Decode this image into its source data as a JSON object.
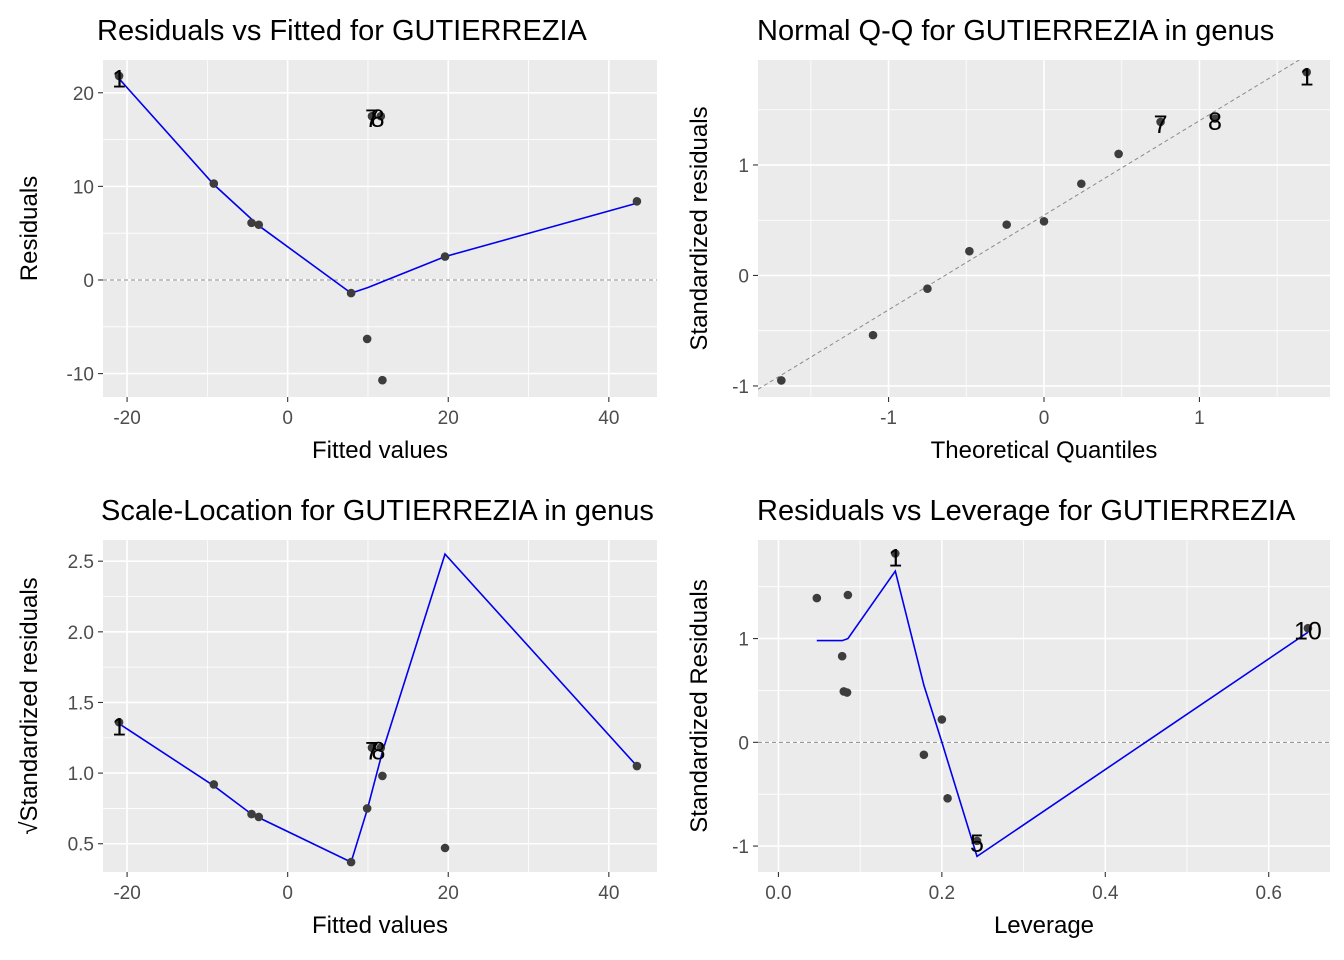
{
  "chart_data": [
    {
      "type": "scatter",
      "title": "Residuals vs Fitted for GUTIERREZIA",
      "xlabel": "Fitted values",
      "ylabel": "Residuals",
      "xlim": [
        -23,
        46
      ],
      "ylim": [
        -12.5,
        23.5
      ],
      "xticks": [
        -20,
        0,
        20,
        40
      ],
      "yticks": [
        -10,
        0,
        10,
        20
      ],
      "hline": 0,
      "points": [
        {
          "x": -21,
          "y": 21.8
        },
        {
          "x": -9.2,
          "y": 10.3
        },
        {
          "x": -4.5,
          "y": 6.1
        },
        {
          "x": -3.6,
          "y": 5.9
        },
        {
          "x": 7.9,
          "y": -1.4
        },
        {
          "x": 9.9,
          "y": -6.3
        },
        {
          "x": 10.5,
          "y": 17.5
        },
        {
          "x": 11.6,
          "y": 17.5
        },
        {
          "x": 11.8,
          "y": -10.7
        },
        {
          "x": 19.6,
          "y": 2.5
        },
        {
          "x": 43.5,
          "y": 8.4
        }
      ],
      "smooth": [
        {
          "x": -21,
          "y": 21.5
        },
        {
          "x": -9.2,
          "y": 10.2
        },
        {
          "x": -4.5,
          "y": 6.5
        },
        {
          "x": -3.6,
          "y": 5.8
        },
        {
          "x": 7.9,
          "y": -1.4
        },
        {
          "x": 10,
          "y": -0.8
        },
        {
          "x": 19.6,
          "y": 2.5
        },
        {
          "x": 43.5,
          "y": 8.2
        }
      ],
      "labels": [
        {
          "text": "1",
          "x": -21,
          "y": 21.5
        },
        {
          "text": "7",
          "x": 10.5,
          "y": 17.3
        },
        {
          "text": "8",
          "x": 11.2,
          "y": 17.3
        }
      ]
    },
    {
      "type": "scatter",
      "title": "Normal Q-Q for GUTIERREZIA in genus",
      "xlabel": "Theoretical Quantiles",
      "ylabel": "Standardized residuals",
      "xlim": [
        -1.84,
        1.84
      ],
      "ylim": [
        -1.1,
        1.95
      ],
      "xticks": [
        -1,
        0,
        1
      ],
      "yticks": [
        -1,
        0,
        1
      ],
      "refline": [
        {
          "x": -1.84,
          "y": -1.03
        },
        {
          "x": 1.84,
          "y": 2.12
        }
      ],
      "points": [
        {
          "x": -1.69,
          "y": -0.95
        },
        {
          "x": -1.1,
          "y": -0.54
        },
        {
          "x": -0.75,
          "y": -0.12
        },
        {
          "x": -0.48,
          "y": 0.22
        },
        {
          "x": -0.24,
          "y": 0.46
        },
        {
          "x": 0.0,
          "y": 0.49
        },
        {
          "x": 0.24,
          "y": 0.83
        },
        {
          "x": 0.48,
          "y": 1.1
        },
        {
          "x": 0.75,
          "y": 1.39
        },
        {
          "x": 1.1,
          "y": 1.42
        },
        {
          "x": 1.69,
          "y": 1.84
        }
      ],
      "labels": [
        {
          "text": "7",
          "x": 0.75,
          "y": 1.37
        },
        {
          "text": "8",
          "x": 1.1,
          "y": 1.4
        },
        {
          "text": "1",
          "x": 1.69,
          "y": 1.8
        }
      ]
    },
    {
      "type": "scatter",
      "title": "Scale-Location for GUTIERREZIA in genus",
      "xlabel": "Fitted values",
      "ylabel": "√Standardized residuals",
      "xlim": [
        -23,
        46
      ],
      "ylim": [
        0.3,
        2.65
      ],
      "xticks": [
        -20,
        0,
        20,
        40
      ],
      "yticks": [
        0.5,
        1.0,
        1.5,
        2.0,
        2.5
      ],
      "ytick_labels": [
        "0.5",
        "1.0",
        "1.5",
        "2.0",
        "2.5"
      ],
      "points": [
        {
          "x": -21,
          "y": 1.36
        },
        {
          "x": -9.2,
          "y": 0.92
        },
        {
          "x": -4.5,
          "y": 0.71
        },
        {
          "x": -3.6,
          "y": 0.69
        },
        {
          "x": 7.9,
          "y": 0.37
        },
        {
          "x": 9.9,
          "y": 0.75
        },
        {
          "x": 10.5,
          "y": 1.18
        },
        {
          "x": 11.6,
          "y": 1.18
        },
        {
          "x": 11.8,
          "y": 0.98
        },
        {
          "x": 19.6,
          "y": 0.47
        },
        {
          "x": 43.5,
          "y": 1.05
        }
      ],
      "smooth": [
        {
          "x": -21,
          "y": 1.35
        },
        {
          "x": -9.2,
          "y": 0.91
        },
        {
          "x": -4.5,
          "y": 0.71
        },
        {
          "x": 7.9,
          "y": 0.37
        },
        {
          "x": 9.9,
          "y": 0.74
        },
        {
          "x": 11.8,
          "y": 1.15
        },
        {
          "x": 19.6,
          "y": 2.55
        },
        {
          "x": 43.5,
          "y": 1.05
        }
      ],
      "labels": [
        {
          "text": "1",
          "x": -21,
          "y": 1.33
        },
        {
          "text": "7",
          "x": 10.5,
          "y": 1.16
        },
        {
          "text": "8",
          "x": 11.3,
          "y": 1.16
        }
      ]
    },
    {
      "type": "scatter",
      "title": "Residuals vs Leverage for GUTIERREZIA",
      "xlabel": "Leverage",
      "ylabel": "Standardized Residuals",
      "xlim": [
        -0.025,
        0.675
      ],
      "ylim": [
        -1.25,
        1.95
      ],
      "xticks": [
        0.0,
        0.2,
        0.4,
        0.6
      ],
      "xtick_labels": [
        "0.0",
        "0.2",
        "0.4",
        "0.6"
      ],
      "yticks": [
        -1,
        0,
        1
      ],
      "hline": 0,
      "points": [
        {
          "x": 0.047,
          "y": 1.39
        },
        {
          "x": 0.078,
          "y": 0.83
        },
        {
          "x": 0.08,
          "y": 0.49
        },
        {
          "x": 0.084,
          "y": 0.48
        },
        {
          "x": 0.085,
          "y": 1.42
        },
        {
          "x": 0.143,
          "y": 1.82
        },
        {
          "x": 0.178,
          "y": -0.12
        },
        {
          "x": 0.2,
          "y": 0.22
        },
        {
          "x": 0.207,
          "y": -0.54
        },
        {
          "x": 0.243,
          "y": -0.95
        },
        {
          "x": 0.648,
          "y": 1.1
        }
      ],
      "smooth": [
        {
          "x": 0.047,
          "y": 0.98
        },
        {
          "x": 0.078,
          "y": 0.98
        },
        {
          "x": 0.085,
          "y": 1.0
        },
        {
          "x": 0.143,
          "y": 1.65
        },
        {
          "x": 0.178,
          "y": 0.55
        },
        {
          "x": 0.2,
          "y": 0.0
        },
        {
          "x": 0.243,
          "y": -1.1
        },
        {
          "x": 0.648,
          "y": 1.06
        }
      ],
      "labels": [
        {
          "text": "1",
          "x": 0.143,
          "y": 1.78
        },
        {
          "text": "5",
          "x": 0.243,
          "y": -0.97
        },
        {
          "text": "10",
          "x": 0.648,
          "y": 1.08
        }
      ]
    }
  ]
}
